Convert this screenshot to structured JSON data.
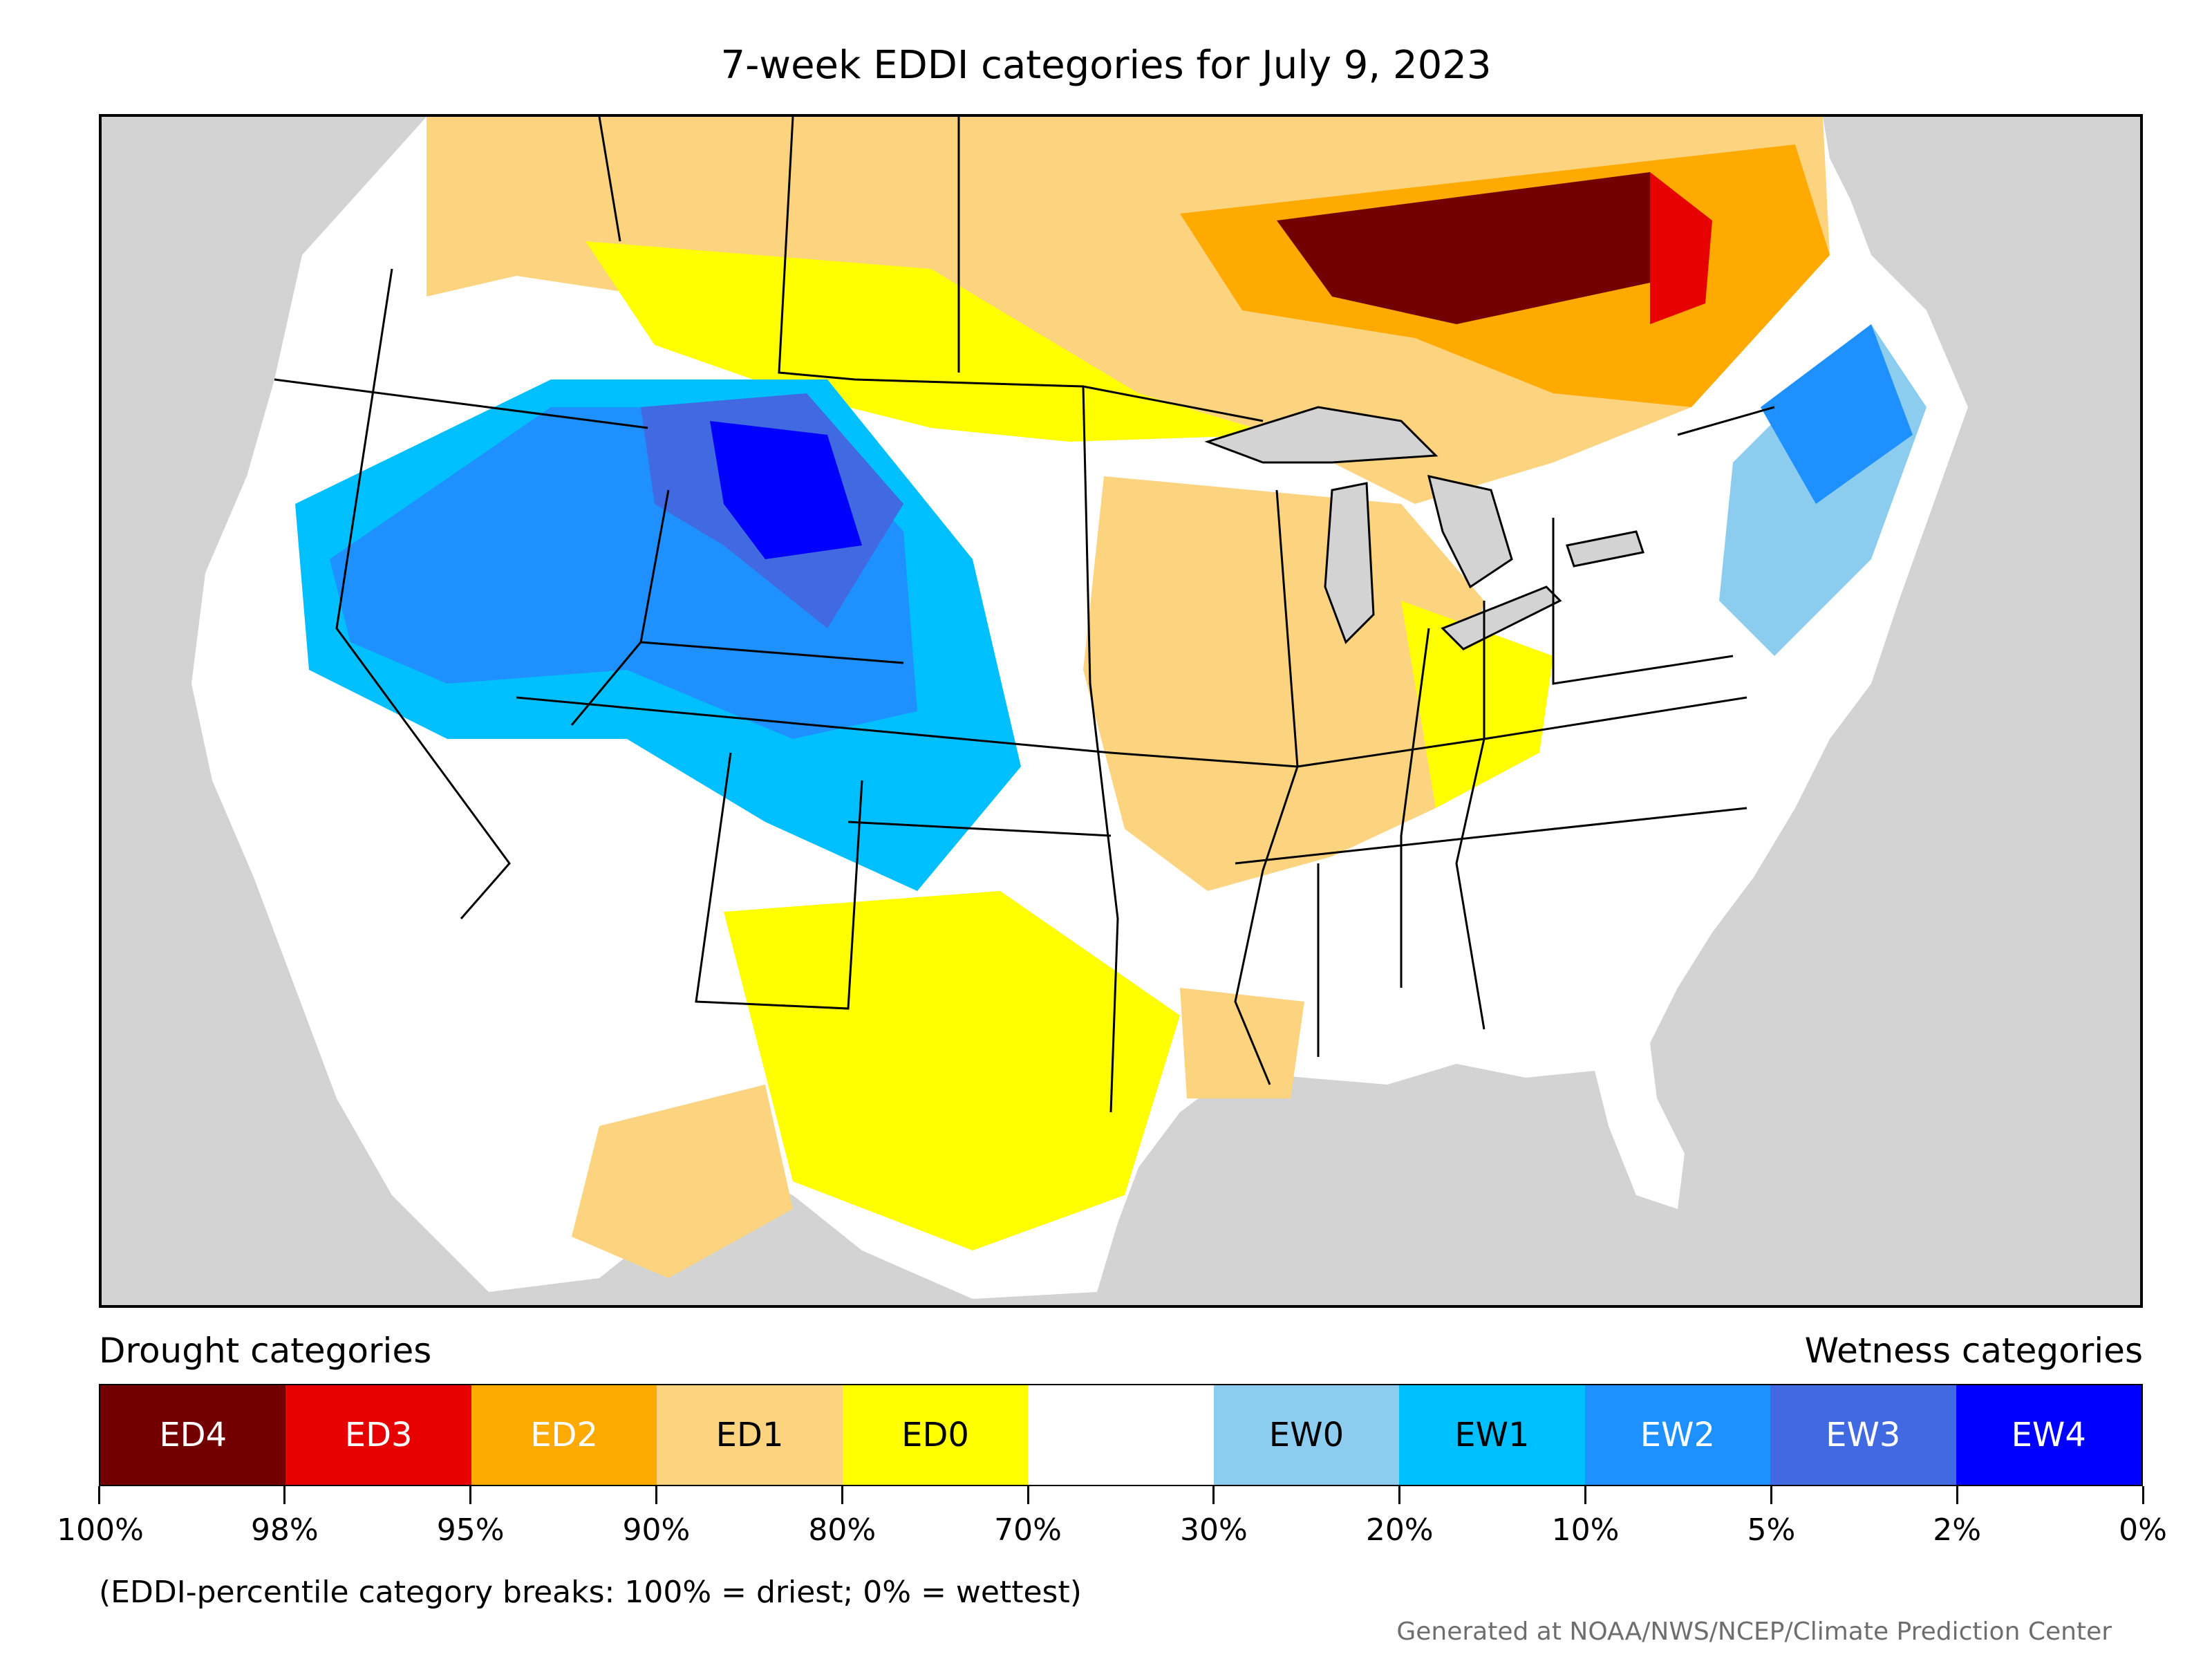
{
  "title": "7-week EDDI categories for July 9, 2023",
  "drought_heading": "Drought categories",
  "wetness_heading": "Wetness categories",
  "legend": [
    {
      "label": "ED4",
      "color": "#730000",
      "text_color": "#ffffff"
    },
    {
      "label": "ED3",
      "color": "#e60000",
      "text_color": "#ffffff"
    },
    {
      "label": "ED2",
      "color": "#ffaa00",
      "text_color": "#ffffff"
    },
    {
      "label": "ED1",
      "color": "#fcd37f",
      "text_color": "#000000"
    },
    {
      "label": "ED0",
      "color": "#ffff00",
      "text_color": "#000000"
    },
    {
      "label": "",
      "color": "#ffffff",
      "text_color": "#000000"
    },
    {
      "label": "EW0",
      "color": "#8ccdef",
      "text_color": "#000000"
    },
    {
      "label": "EW1",
      "color": "#00bfff",
      "text_color": "#000000"
    },
    {
      "label": "EW2",
      "color": "#1e90ff",
      "text_color": "#ffffff"
    },
    {
      "label": "EW3",
      "color": "#4169e1",
      "text_color": "#ffffff"
    },
    {
      "label": "EW4",
      "color": "#0000ff",
      "text_color": "#ffffff"
    }
  ],
  "ticks": [
    "100%",
    "98%",
    "95%",
    "90%",
    "80%",
    "70%",
    "30%",
    "20%",
    "10%",
    "5%",
    "2%",
    "0%"
  ],
  "note": "(EDDI-percentile category breaks: 100% = driest; 0% = wettest)",
  "credit": "Generated at NOAA/NWS/NCEP/Climate Prediction Center",
  "map_colors": {
    "background": "#d3d3d3",
    "land": "#ffffff",
    "lakes": "#d3d3d3"
  }
}
